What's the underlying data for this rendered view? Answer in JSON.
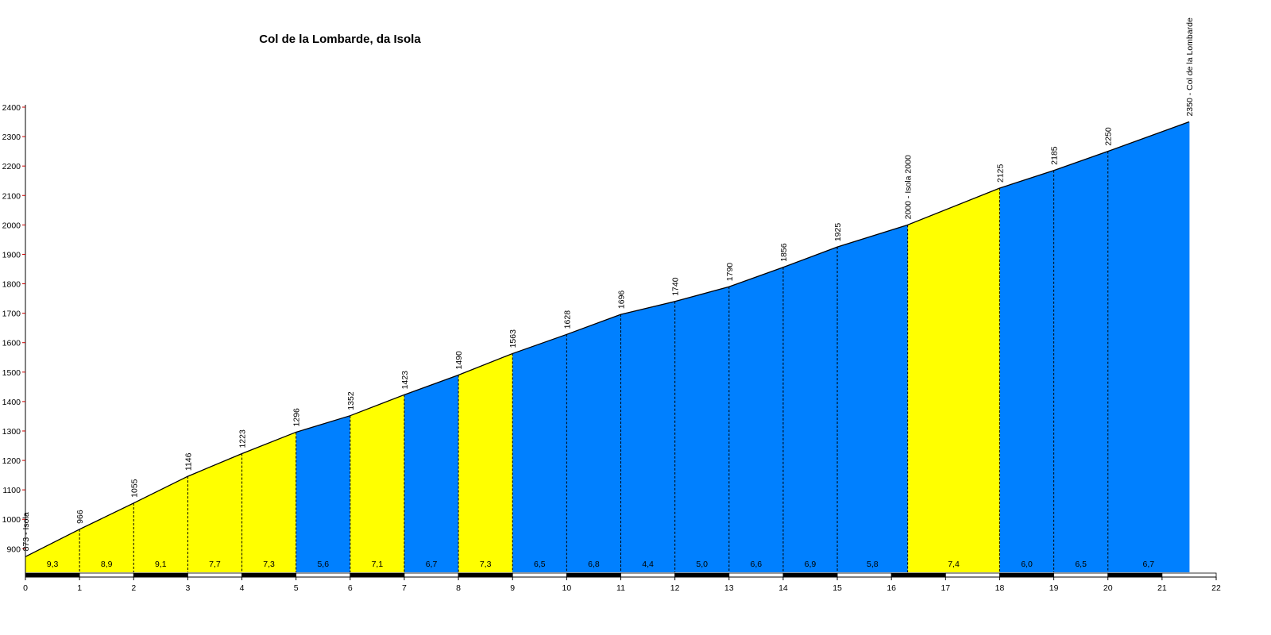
{
  "chart_data": {
    "type": "area",
    "title": "Col de la Lombarde, da Isola",
    "xlabel": "",
    "ylabel": "",
    "xlim": [
      0,
      22
    ],
    "ylim": [
      820,
      2400
    ],
    "x_ticks": [
      "0",
      "1",
      "2",
      "3",
      "4",
      "5",
      "6",
      "7",
      "8",
      "9",
      "10",
      "11",
      "12",
      "13",
      "14",
      "15",
      "16",
      "17",
      "18",
      "19",
      "20",
      "21",
      "22"
    ],
    "y_ticks": [
      "900",
      "1000",
      "1100",
      "1200",
      "1300",
      "1400",
      "1500",
      "1600",
      "1700",
      "1800",
      "1900",
      "2000",
      "2100",
      "2200",
      "2300",
      "2400"
    ],
    "colors": {
      "easy": "#ffff00",
      "hard": "#0080ff",
      "outline": "#000000"
    },
    "points": [
      {
        "x": 0,
        "y": 873,
        "label": "873 - Isola"
      },
      {
        "x": 1,
        "y": 966,
        "label": "966"
      },
      {
        "x": 2,
        "y": 1055,
        "label": "1055"
      },
      {
        "x": 3,
        "y": 1146,
        "label": "1146"
      },
      {
        "x": 4,
        "y": 1223,
        "label": "1223"
      },
      {
        "x": 5,
        "y": 1296,
        "label": "1296"
      },
      {
        "x": 6,
        "y": 1352,
        "label": "1352"
      },
      {
        "x": 7,
        "y": 1423,
        "label": "1423"
      },
      {
        "x": 8,
        "y": 1490,
        "label": "1490"
      },
      {
        "x": 9,
        "y": 1563,
        "label": "1563"
      },
      {
        "x": 10,
        "y": 1628,
        "label": "1628"
      },
      {
        "x": 11,
        "y": 1696,
        "label": "1696"
      },
      {
        "x": 12,
        "y": 1740,
        "label": "1740"
      },
      {
        "x": 13,
        "y": 1790,
        "label": "1790"
      },
      {
        "x": 14,
        "y": 1856,
        "label": "1856"
      },
      {
        "x": 15,
        "y": 1925,
        "label": "1925"
      },
      {
        "x": 16.3,
        "y": 2000,
        "label": "2000 - Isola 2000"
      },
      {
        "x": 18,
        "y": 2125,
        "label": "2125"
      },
      {
        "x": 19,
        "y": 2185,
        "label": "2185"
      },
      {
        "x": 20,
        "y": 2250,
        "label": "2250"
      },
      {
        "x": 21.5,
        "y": 2350,
        "label": "2350 - Col de la Lombarde"
      }
    ],
    "segments": [
      {
        "from": 0,
        "to": 1,
        "gradient": "9,3",
        "color": "easy"
      },
      {
        "from": 1,
        "to": 2,
        "gradient": "8,9",
        "color": "easy"
      },
      {
        "from": 2,
        "to": 3,
        "gradient": "9,1",
        "color": "easy"
      },
      {
        "from": 3,
        "to": 4,
        "gradient": "7,7",
        "color": "easy"
      },
      {
        "from": 4,
        "to": 5,
        "gradient": "7,3",
        "color": "easy"
      },
      {
        "from": 5,
        "to": 6,
        "gradient": "5,6",
        "color": "hard"
      },
      {
        "from": 6,
        "to": 7,
        "gradient": "7,1",
        "color": "easy"
      },
      {
        "from": 7,
        "to": 8,
        "gradient": "6,7",
        "color": "hard"
      },
      {
        "from": 8,
        "to": 9,
        "gradient": "7,3",
        "color": "easy"
      },
      {
        "from": 9,
        "to": 10,
        "gradient": "6,5",
        "color": "hard"
      },
      {
        "from": 10,
        "to": 11,
        "gradient": "6,8",
        "color": "hard"
      },
      {
        "from": 11,
        "to": 12,
        "gradient": "4,4",
        "color": "hard"
      },
      {
        "from": 12,
        "to": 13,
        "gradient": "5,0",
        "color": "hard"
      },
      {
        "from": 13,
        "to": 14,
        "gradient": "6,6",
        "color": "hard"
      },
      {
        "from": 14,
        "to": 15,
        "gradient": "6,9",
        "color": "hard"
      },
      {
        "from": 15,
        "to": 16.3,
        "gradient": "5,8",
        "color": "hard"
      },
      {
        "from": 16.3,
        "to": 18,
        "gradient": "7,4",
        "color": "easy"
      },
      {
        "from": 18,
        "to": 19,
        "gradient": "6,0",
        "color": "hard"
      },
      {
        "from": 19,
        "to": 20,
        "gradient": "6,5",
        "color": "hard"
      },
      {
        "from": 20,
        "to": 21.5,
        "gradient": "6,7",
        "color": "hard"
      }
    ]
  }
}
